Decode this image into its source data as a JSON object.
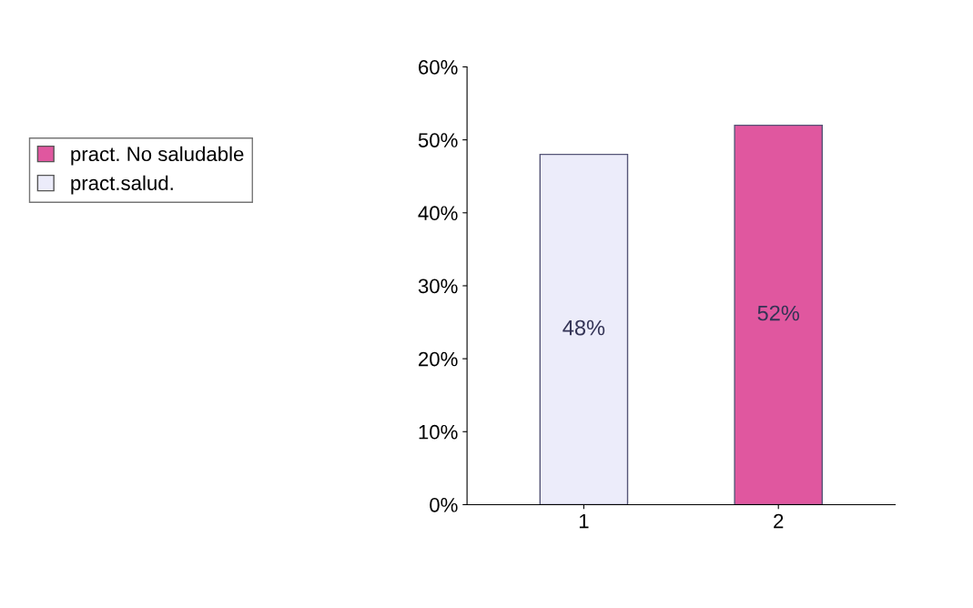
{
  "chart_data": {
    "type": "bar",
    "categories": [
      "1",
      "2"
    ],
    "series": [
      {
        "name": "pract. No saludable",
        "color": "#e0579f",
        "values": [
          null,
          52
        ],
        "value_labels": [
          null,
          "52%"
        ]
      },
      {
        "name": "pract.salud.",
        "color": "#ececfa",
        "values": [
          48,
          null
        ],
        "value_labels": [
          "48%",
          null
        ]
      }
    ],
    "ylim": [
      0,
      60
    ],
    "yticks": [
      {
        "value": 0,
        "label": "0%"
      },
      {
        "value": 10,
        "label": "10%"
      },
      {
        "value": 20,
        "label": "20%"
      },
      {
        "value": 30,
        "label": "30%"
      },
      {
        "value": 40,
        "label": "40%"
      },
      {
        "value": 50,
        "label": "50%"
      },
      {
        "value": 60,
        "label": "60%"
      }
    ],
    "grid": false,
    "legend": "left"
  }
}
